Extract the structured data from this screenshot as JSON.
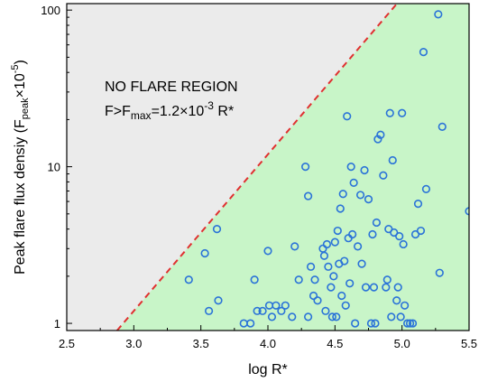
{
  "chart_data": {
    "type": "scatter",
    "title": "",
    "xlabel": "log R*",
    "ylabel": "Peak flare flux densiy (F",
    "ylabel_sub": "peak",
    "ylabel_tail": "×10",
    "ylabel_sup": "-5",
    "ylabel_close": ")",
    "xlim": [
      2.5,
      5.5
    ],
    "ylim": [
      0.9,
      110
    ],
    "yscale": "log",
    "xticks": [
      2.5,
      3.0,
      3.5,
      4.0,
      4.5,
      5.0,
      5.5
    ],
    "xtick_labels": [
      "2.5",
      "3.0",
      "3.5",
      "4.0",
      "4.5",
      "5.0",
      "5.5"
    ],
    "yticks": [
      1,
      10,
      100
    ],
    "ytick_labels": [
      "1",
      "10",
      "100"
    ],
    "grid": false,
    "boundary": {
      "description": "F_max = 1.2e-3 R*",
      "coef": 1.2,
      "color": "#e03030"
    },
    "region_colors": {
      "no_flare": "#ebebeb",
      "flare": "#c8f5c8"
    },
    "marker_color": "#2a73d8",
    "annotation": {
      "line1": "NO FLARE REGION",
      "line2_prefix": "F>F",
      "line2_sub": "max",
      "line2_mid": "=1.2×10",
      "line2_sup": "-3",
      "line2_suffix": " R*"
    },
    "x": [
      3.41,
      3.53,
      3.56,
      3.62,
      3.63,
      3.82,
      3.87,
      3.9,
      3.92,
      3.96,
      4.0,
      4.01,
      4.03,
      4.06,
      4.1,
      4.13,
      4.18,
      4.2,
      4.23,
      4.28,
      4.3,
      4.3,
      4.32,
      4.34,
      4.35,
      4.37,
      4.41,
      4.42,
      4.43,
      4.44,
      4.45,
      4.47,
      4.48,
      4.49,
      4.5,
      4.51,
      4.52,
      4.53,
      4.54,
      4.55,
      4.56,
      4.57,
      4.58,
      4.59,
      4.6,
      4.61,
      4.62,
      4.63,
      4.64,
      4.65,
      4.67,
      4.69,
      4.7,
      4.72,
      4.73,
      4.75,
      4.77,
      4.78,
      4.79,
      4.8,
      4.81,
      4.82,
      4.84,
      4.86,
      4.88,
      4.89,
      4.9,
      4.91,
      4.92,
      4.93,
      4.94,
      4.96,
      4.97,
      4.98,
      4.99,
      5.0,
      5.01,
      5.02,
      5.04,
      5.06,
      5.08,
      5.1,
      5.12,
      5.14,
      5.16,
      5.18,
      5.27,
      5.28,
      5.3,
      5.5
    ],
    "y": [
      1.9,
      2.8,
      1.2,
      4.0,
      1.4,
      1.0,
      1.0,
      1.9,
      1.2,
      1.2,
      2.9,
      1.3,
      1.1,
      1.3,
      1.2,
      1.3,
      1.1,
      3.1,
      1.9,
      10.0,
      1.1,
      6.5,
      2.3,
      1.5,
      1.9,
      1.4,
      3.0,
      2.7,
      1.2,
      3.2,
      2.3,
      1.7,
      1.1,
      2.0,
      3.3,
      1.1,
      3.9,
      2.4,
      5.4,
      1.5,
      6.7,
      2.5,
      1.3,
      21.0,
      3.5,
      1.8,
      10.0,
      3.7,
      7.9,
      1.0,
      3.1,
      6.6,
      2.4,
      9.5,
      1.7,
      6.2,
      1.0,
      3.7,
      1.7,
      1.0,
      4.4,
      15.0,
      16.0,
      8.8,
      1.7,
      1.9,
      4.0,
      22.0,
      1.1,
      11.0,
      3.8,
      1.4,
      1.7,
      3.6,
      1.1,
      22.0,
      3.2,
      1.3,
      1.0,
      1.0,
      1.0,
      3.7,
      5.8,
      3.9,
      54.0,
      7.2,
      94.0,
      2.1,
      18.0,
      5.2
    ]
  }
}
